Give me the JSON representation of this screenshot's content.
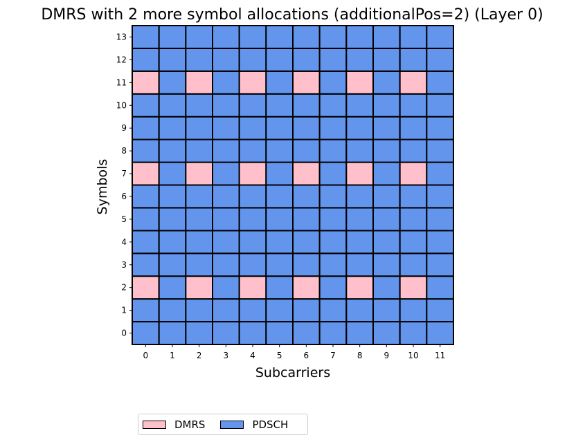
{
  "chart_data": {
    "type": "heatmap",
    "title": "DMRS with 2 more symbol allocations (additionalPos=2) (Layer 0)",
    "xlabel": "Subcarriers",
    "ylabel": "Symbols",
    "x_ticks": [
      "0",
      "1",
      "2",
      "3",
      "4",
      "5",
      "6",
      "7",
      "8",
      "9",
      "10",
      "11"
    ],
    "y_ticks": [
      "0",
      "1",
      "2",
      "3",
      "4",
      "5",
      "6",
      "7",
      "8",
      "9",
      "10",
      "11",
      "12",
      "13"
    ],
    "categories_legend": [
      {
        "name": "DMRS",
        "color": "#ffc0cb"
      },
      {
        "name": "PDSCH",
        "color": "#6495ed"
      }
    ],
    "legend_position": "bottom-center",
    "grid": [
      [
        1,
        1,
        1,
        1,
        1,
        1,
        1,
        1,
        1,
        1,
        1,
        1
      ],
      [
        1,
        1,
        1,
        1,
        1,
        1,
        1,
        1,
        1,
        1,
        1,
        1
      ],
      [
        0,
        1,
        0,
        1,
        0,
        1,
        0,
        1,
        0,
        1,
        0,
        1
      ],
      [
        1,
        1,
        1,
        1,
        1,
        1,
        1,
        1,
        1,
        1,
        1,
        1
      ],
      [
        1,
        1,
        1,
        1,
        1,
        1,
        1,
        1,
        1,
        1,
        1,
        1
      ],
      [
        1,
        1,
        1,
        1,
        1,
        1,
        1,
        1,
        1,
        1,
        1,
        1
      ],
      [
        1,
        1,
        1,
        1,
        1,
        1,
        1,
        1,
        1,
        1,
        1,
        1
      ],
      [
        0,
        1,
        0,
        1,
        0,
        1,
        0,
        1,
        0,
        1,
        0,
        1
      ],
      [
        1,
        1,
        1,
        1,
        1,
        1,
        1,
        1,
        1,
        1,
        1,
        1
      ],
      [
        1,
        1,
        1,
        1,
        1,
        1,
        1,
        1,
        1,
        1,
        1,
        1
      ],
      [
        1,
        1,
        1,
        1,
        1,
        1,
        1,
        1,
        1,
        1,
        1,
        1
      ],
      [
        0,
        1,
        0,
        1,
        0,
        1,
        0,
        1,
        0,
        1,
        0,
        1
      ],
      [
        1,
        1,
        1,
        1,
        1,
        1,
        1,
        1,
        1,
        1,
        1,
        1
      ],
      [
        1,
        1,
        1,
        1,
        1,
        1,
        1,
        1,
        1,
        1,
        1,
        1
      ]
    ],
    "grid_legend_index_meaning": "0=DMRS, 1=PDSCH; rows indexed by symbol from 0 upward"
  }
}
